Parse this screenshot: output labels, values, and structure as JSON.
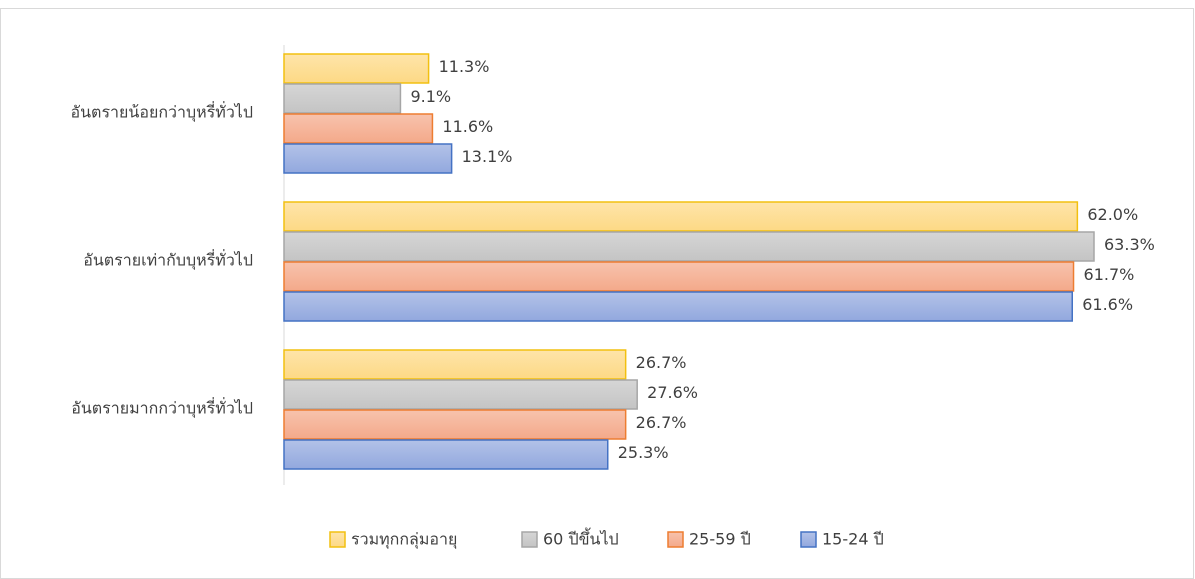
{
  "chart_data": {
    "type": "hbar",
    "categories": [
      "อันตรายน้อยกว่าบุหรี่ทั่วไป",
      "อันตรายเท่ากับบุหรี่ทั่วไป",
      "อันตรายมากกว่าบุหรี่ทั่วไป"
    ],
    "series": [
      {
        "name": "รวมทุกกลุ่มอายุ",
        "color": "#f2c010",
        "fill": "#fdd985",
        "values": [
          11.3,
          62.0,
          26.7
        ],
        "value_labels": [
          "11.3%",
          "62.0%",
          "26.7%"
        ]
      },
      {
        "name": "60 ปีขึ้นไป",
        "color": "#a6a6a6",
        "fill": "#c4c4c4",
        "values": [
          9.1,
          63.3,
          27.6
        ],
        "value_labels": [
          "9.1%",
          "63.3%",
          "27.6%"
        ]
      },
      {
        "name": "25-59 ปี",
        "color": "#ed7d31",
        "fill": "#f4a98a",
        "values": [
          11.6,
          61.7,
          26.7
        ],
        "value_labels": [
          "11.6%",
          "61.7%",
          "26.7%"
        ]
      },
      {
        "name": "15-24 ปี",
        "color": "#4472c4",
        "fill": "#92a8de",
        "values": [
          13.1,
          61.6,
          25.3
        ],
        "value_labels": [
          "13.1%",
          "61.6%",
          "25.3%"
        ]
      }
    ],
    "legend": "bottom"
  }
}
